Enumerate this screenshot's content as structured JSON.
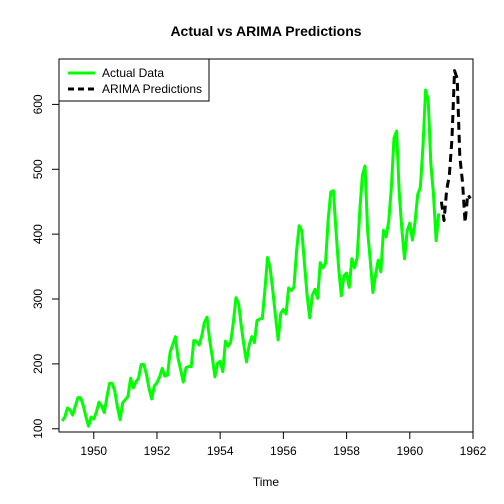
{
  "chart_data": {
    "type": "line",
    "title": "Actual vs ARIMA Predictions",
    "xlabel": "Time",
    "ylabel": "",
    "xlim": [
      1948.9,
      1962.0
    ],
    "ylim": [
      95,
      670
    ],
    "x_ticks": [
      1950,
      1952,
      1954,
      1956,
      1958,
      1960,
      1962
    ],
    "y_ticks": [
      100,
      200,
      300,
      400,
      500,
      600
    ],
    "legend": {
      "position": "top-left"
    },
    "grid": false,
    "series": [
      {
        "name": "Actual Data",
        "color": "#00ff00",
        "style": "solid",
        "x_start": 1949.0,
        "x_step": 0.08333333,
        "values": [
          112,
          118,
          132,
          129,
          121,
          135,
          148,
          148,
          136,
          119,
          104,
          118,
          115,
          126,
          141,
          135,
          125,
          149,
          170,
          170,
          158,
          133,
          114,
          140,
          145,
          150,
          178,
          163,
          172,
          178,
          199,
          199,
          184,
          162,
          146,
          166,
          171,
          180,
          193,
          181,
          183,
          218,
          230,
          242,
          209,
          191,
          172,
          194,
          196,
          196,
          236,
          235,
          229,
          243,
          264,
          272,
          237,
          211,
          180,
          201,
          204,
          188,
          235,
          227,
          234,
          264,
          302,
          293,
          259,
          229,
          203,
          229,
          242,
          233,
          267,
          269,
          270,
          315,
          364,
          347,
          312,
          274,
          237,
          278,
          284,
          277,
          317,
          313,
          318,
          374,
          413,
          405,
          355,
          306,
          271,
          306,
          315,
          301,
          356,
          348,
          355,
          422,
          465,
          467,
          404,
          347,
          305,
          336,
          340,
          318,
          362,
          348,
          363,
          435,
          491,
          505,
          404,
          359,
          310,
          337,
          360,
          342,
          406,
          396,
          420,
          472,
          548,
          559,
          463,
          407,
          362,
          405,
          417,
          391,
          419,
          461,
          472,
          535,
          622,
          606,
          508,
          461,
          390,
          432
        ]
      },
      {
        "name": "ARIMA Predictions",
        "color": "#000000",
        "style": "dashed",
        "x_start": 1961.0,
        "x_step": 0.08333333,
        "values": [
          450,
          421,
          468,
          490,
          546,
          652,
          640,
          519,
          481,
          418,
          461,
          455
        ]
      }
    ]
  }
}
